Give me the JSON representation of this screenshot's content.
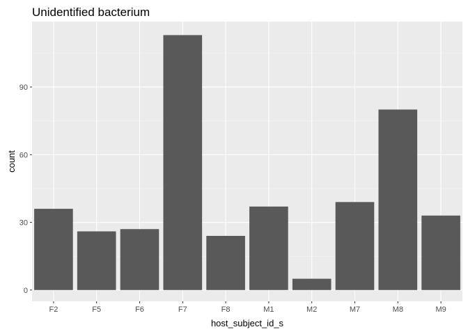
{
  "chart_data": {
    "type": "bar",
    "title": "Unidentified bacterium",
    "xlabel": "host_subject_id_s",
    "ylabel": "count",
    "categories": [
      "F2",
      "F5",
      "F6",
      "F7",
      "F8",
      "M1",
      "M2",
      "M7",
      "M8",
      "M9"
    ],
    "values": [
      36,
      26,
      27,
      113,
      24,
      37,
      5,
      39,
      80,
      33
    ],
    "ylim": [
      -5,
      119
    ],
    "yticks": [
      0,
      30,
      60,
      90
    ],
    "ytick_labels": [
      "0",
      "30",
      "60",
      "90"
    ],
    "grid": true,
    "legend": "none",
    "colors": {
      "bar": "#595959",
      "panel": "#ebebeb",
      "grid_major": "#ffffff",
      "grid_minor": "#f5f5f5",
      "tick_label": "#4d4d4d",
      "tick_mark": "#333333"
    }
  }
}
